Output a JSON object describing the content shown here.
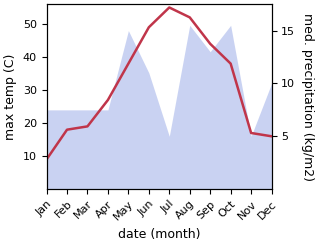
{
  "chart_data": {
    "type": "line",
    "xlabel": "date (month)",
    "ylabel": "max temp (C)",
    "y2label": "med. precipitation (kg/m2)",
    "categories": [
      "Jan",
      "Feb",
      "Mar",
      "Apr",
      "May",
      "Jun",
      "Jul",
      "Aug",
      "Sep",
      "Oct",
      "Nov",
      "Dec"
    ],
    "series": [
      {
        "type": "line",
        "color": "#c0354a",
        "values": [
          9,
          18,
          19,
          27,
          38,
          49,
          55,
          52,
          44,
          38,
          17,
          16
        ]
      },
      {
        "type": "area",
        "color": "#b8c4ee",
        "axis": "y2",
        "values": [
          7.5,
          7.5,
          7.5,
          7.5,
          15.0,
          11.0,
          5.0,
          15.5,
          13.0,
          15.5,
          5.0,
          10.0
        ]
      }
    ],
    "ylim": [
      0,
      56
    ],
    "yticks": [
      10,
      20,
      30,
      40,
      50
    ],
    "y2lim": [
      0,
      17.5
    ],
    "y2ticks": [
      5,
      10,
      15
    ],
    "grid": false
  }
}
